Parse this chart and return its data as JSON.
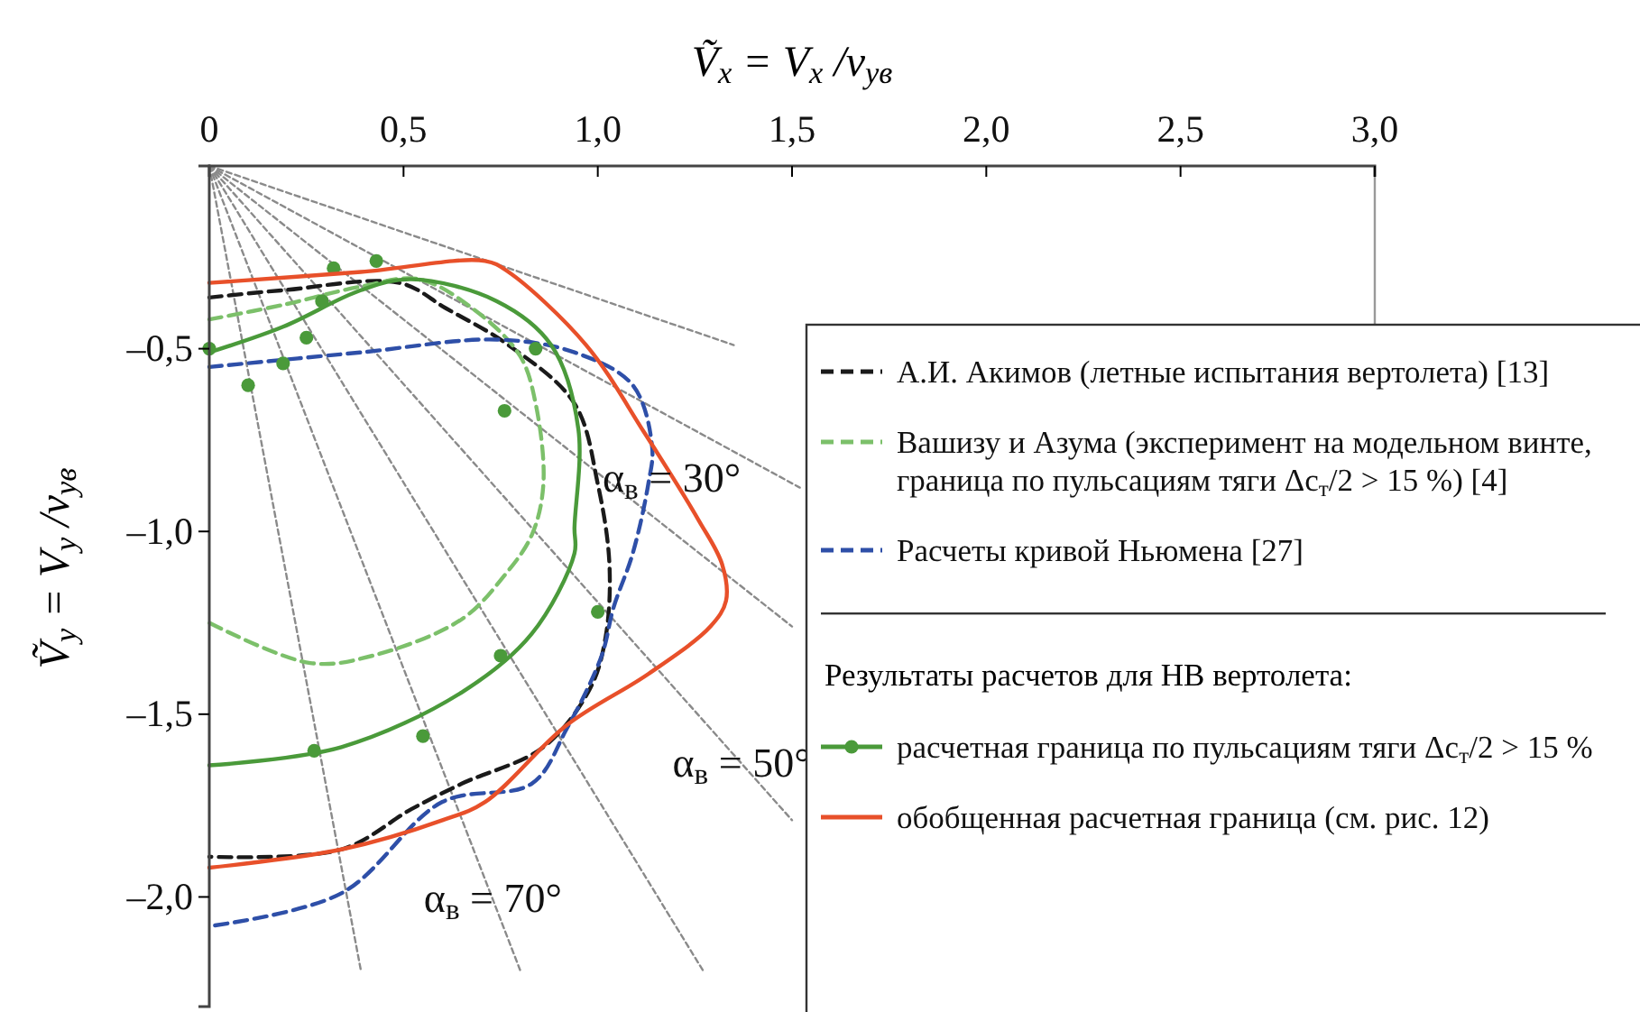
{
  "chart_data": {
    "type": "line",
    "xlabel": "Ṽ$_{x}$ = V$_{x}$ /v$_{yв}$",
    "ylabel": "Ṽ$_{y}$ = V$_{y}$ /v$_{yв}$",
    "xlim": [
      0,
      3.0
    ],
    "ylim": [
      -2.3,
      0
    ],
    "xticks": [
      0,
      {
        "value": 0.5,
        "label": "0,5"
      },
      {
        "value": 1,
        "label": "1,0"
      },
      {
        "value": 1.5,
        "label": "1,5"
      },
      {
        "value": 2,
        "label": "2,0"
      },
      {
        "value": 2.5,
        "label": "2,5"
      },
      {
        "value": 3,
        "label": "3,0"
      }
    ],
    "yticks": [
      {
        "value": -0.5,
        "label": "–0,5"
      },
      {
        "value": -1,
        "label": "–1,0"
      },
      {
        "value": -1.5,
        "label": "–1,5"
      },
      {
        "value": -2,
        "label": "–2,0"
      }
    ],
    "legend": "bottom right",
    "legend_title": "Результаты расчетов для НВ вертолета:",
    "series": [
      {
        "color": "#8a8a8a",
        "line_style": "dashed",
        "x": [
          0,
          1.35
        ],
        "values": [
          0,
          -0.49
        ]
      },
      {
        "color": "#8a8a8a",
        "line_style": "dashed",
        "x": [
          0,
          1.52
        ],
        "values": [
          0,
          -0.88
        ]
      },
      {
        "color": "#8a8a8a",
        "line_style": "dashed",
        "x": [
          0,
          1.5
        ],
        "values": [
          0,
          -1.26
        ]
      },
      {
        "color": "#8a8a8a",
        "line_style": "dashed",
        "x": [
          0,
          1.5
        ],
        "values": [
          0,
          -1.79
        ]
      },
      {
        "color": "#8a8a8a",
        "line_style": "dashed",
        "x": [
          0,
          1.27
        ],
        "values": [
          0,
          -2.2
        ]
      },
      {
        "color": "#8a8a8a",
        "line_style": "dashed",
        "x": [
          0,
          0.8
        ],
        "values": [
          0,
          -2.2
        ]
      },
      {
        "color": "#8a8a8a",
        "line_style": "dashed",
        "x": [
          0,
          0.39
        ],
        "values": [
          0,
          -2.2
        ]
      },
      {
        "name": "А.И. Акимов (летные испытания вертолета) [13]",
        "color": "#1a1a1a",
        "line_style": "dashed",
        "x": [
          0,
          0.19,
          0.49,
          0.61,
          0.77,
          0.94,
          1.0,
          1.03,
          1.02,
          0.98,
          0.86,
          0.65,
          0.52,
          0.34,
          0
        ],
        "values": [
          -0.36,
          -0.34,
          -0.32,
          -0.39,
          -0.49,
          -0.65,
          -0.87,
          -1.09,
          -1.29,
          -1.43,
          -1.59,
          -1.69,
          -1.76,
          -1.87,
          -1.89
        ]
      },
      {
        "name": "Вашизу и Азума (эксперимент на модельном винте, граница по пульсациям тяги Δc$_{т}$/2 > 15 %) [4]",
        "color": "#7cc06a",
        "line_style": "dashed",
        "x": [
          0,
          0.19,
          0.39,
          0.54,
          0.69,
          0.8,
          0.84,
          0.86,
          0.83,
          0.76,
          0.65,
          0.42,
          0.26,
          0
        ],
        "values": [
          -0.42,
          -0.38,
          -0.33,
          -0.31,
          -0.4,
          -0.52,
          -0.65,
          -0.87,
          -1.01,
          -1.12,
          -1.24,
          -1.34,
          -1.36,
          -1.25
        ]
      },
      {
        "name": "Расчеты кривой Ньюмена  [27]",
        "color": "#2e4fa8",
        "line_style": "dashed",
        "x": [
          0,
          0.39,
          0.74,
          0.94,
          1.09,
          1.14,
          1.13,
          1.09,
          1.04,
          1.01,
          0.92,
          0.83,
          0.6,
          0.34,
          0
        ],
        "values": [
          -0.55,
          -0.51,
          -0.475,
          -0.51,
          -0.6,
          -0.77,
          -0.87,
          -1.06,
          -1.21,
          -1.34,
          -1.54,
          -1.69,
          -1.74,
          -1.99,
          -2.08
        ]
      },
      {
        "name": "расчетная граница по пульсациям тяги Δc$_{т}$/2 > 15 %",
        "color": "#4a9a3a",
        "line_style": "solid",
        "x": [
          0,
          0.19,
          0.39,
          0.52,
          0.74,
          0.88,
          0.95,
          0.94,
          0.94,
          0.83,
          0.65,
          0.34,
          0
        ],
        "values": [
          -0.51,
          -0.44,
          -0.34,
          -0.31,
          -0.37,
          -0.49,
          -0.72,
          -0.99,
          -1.06,
          -1.28,
          -1.44,
          -1.59,
          -1.64
        ]
      },
      {
        "type": "scatter",
        "color": "#4a9a3a",
        "marker": "circle",
        "x": [
          0,
          0.1,
          0.19,
          0.25,
          0.29,
          0.32,
          0.43,
          0.84,
          0.76,
          1.0,
          0.75,
          0.55,
          0.27
        ],
        "values": [
          -0.5,
          -0.6,
          -0.54,
          -0.47,
          -0.37,
          -0.28,
          -0.26,
          -0.5,
          -0.67,
          -1.22,
          -1.34,
          -1.56,
          -1.6
        ]
      },
      {
        "name": "обобщенная расчетная граница (см. рис. 12)",
        "color": "#e8502a",
        "line_style": "solid",
        "x": [
          0,
          0.39,
          0.71,
          0.77,
          0.97,
          1.12,
          1.26,
          1.32,
          1.33,
          1.29,
          1.13,
          0.92,
          0.71,
          0.6,
          0.34,
          0
        ],
        "values": [
          -0.32,
          -0.29,
          -0.26,
          -0.29,
          -0.49,
          -0.73,
          -0.97,
          -1.09,
          -1.19,
          -1.26,
          -1.39,
          -1.53,
          -1.74,
          -1.79,
          -1.87,
          -1.92
        ]
      }
    ],
    "annotations": [
      {
        "text": "α$_{в}$ = 30°",
        "x": 1.19,
        "y": -0.85
      },
      {
        "text": "α$_{в}$ = 50°",
        "x": 1.37,
        "y": -1.63
      },
      {
        "text": "α$_{в}$ = 70°",
        "x": 0.73,
        "y": -2.0
      }
    ]
  }
}
